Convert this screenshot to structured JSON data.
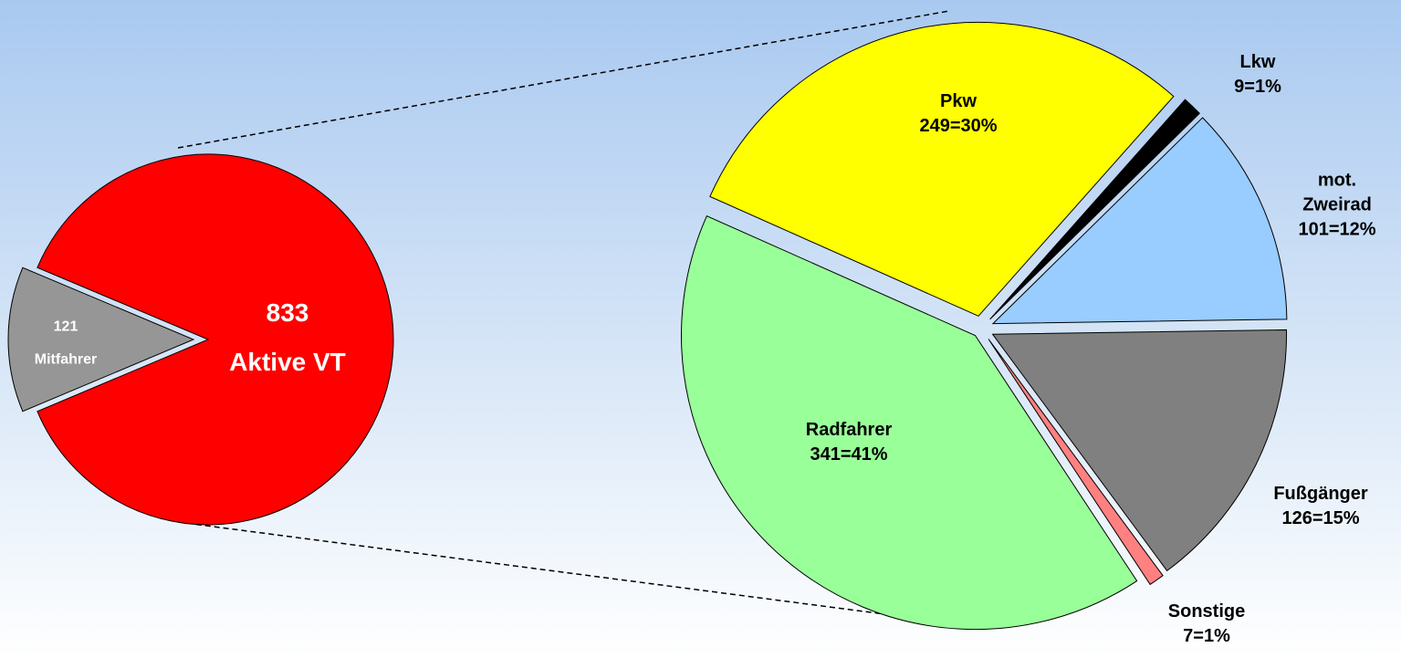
{
  "chart_data": [
    {
      "type": "pie",
      "categories": [
        "Mitfahrer",
        "Aktive VT"
      ],
      "values": [
        121,
        833
      ],
      "colors": [
        "#969696",
        "#ff0000"
      ]
    },
    {
      "type": "pie",
      "categories": [
        "Pkw",
        "Lkw",
        "mot. Zweirad",
        "Fußgänger",
        "Sonstige",
        "Radfahrer"
      ],
      "values": [
        249,
        9,
        101,
        126,
        7,
        341
      ],
      "value_labels": [
        "249=30%",
        "9=1%",
        "101=12%",
        "126=15%",
        "7=1%",
        "341=41%"
      ],
      "colors": [
        "#ffff00",
        "#000000",
        "#99ccff",
        "#808080",
        "#ff8080",
        "#99ff99"
      ]
    }
  ]
}
